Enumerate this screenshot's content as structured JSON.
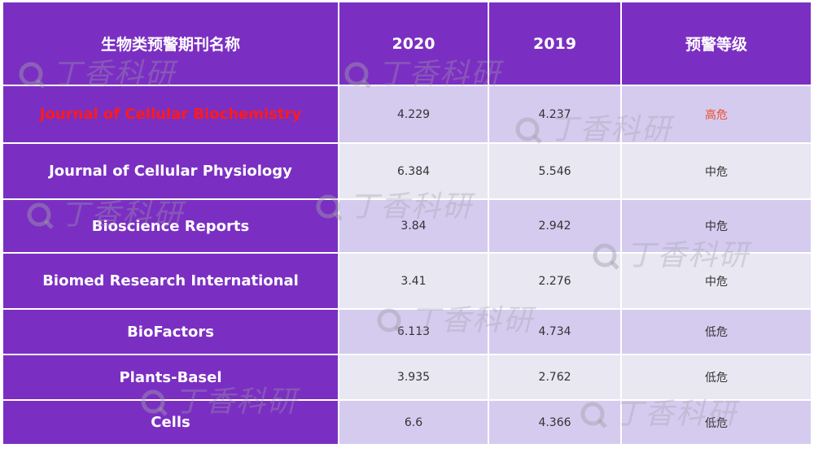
{
  "table": {
    "header": [
      "生物类预警期刊名称",
      "2020",
      "2019",
      "预警等级"
    ],
    "rows": [
      [
        "Journal of Cellular Biochemistry",
        "4.229",
        "4.237",
        "高危"
      ],
      [
        "Journal of Cellular Physiology",
        "6.384",
        "5.546",
        "中危"
      ],
      [
        "Bioscience Reports",
        "3.84",
        "2.942",
        "中危"
      ],
      [
        "Biomed Research International",
        "3.41",
        "2.276",
        "中危"
      ],
      [
        "BioFactors",
        "6.113",
        "4.734",
        "低危"
      ],
      [
        "Plants-Basel",
        "3.935",
        "2.762",
        "低危"
      ],
      [
        "Cells",
        "6.6",
        "4.366",
        "低危"
      ]
    ]
  },
  "watermark": "丁香科研"
}
